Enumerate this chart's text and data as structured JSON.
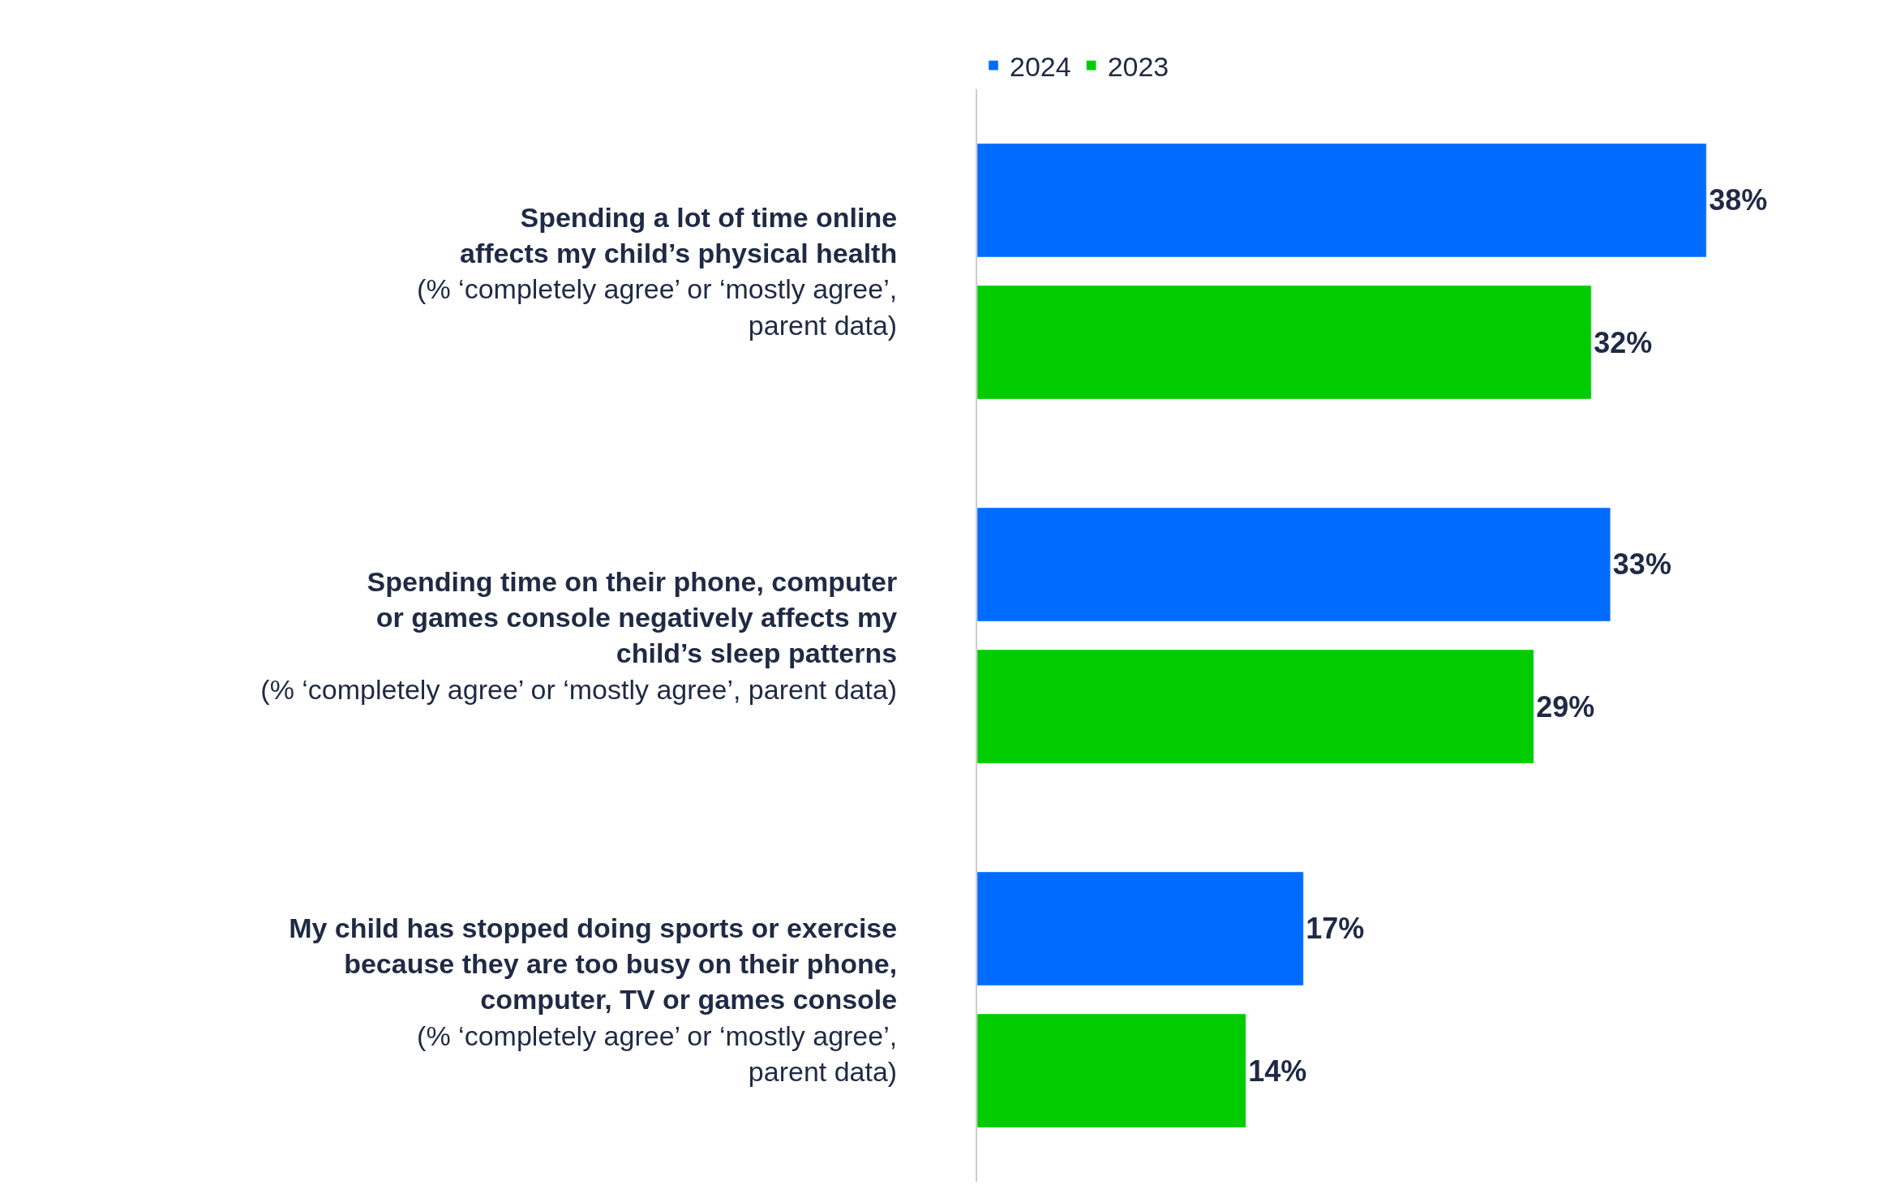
{
  "chart_data": {
    "type": "bar",
    "orientation": "horizontal",
    "categories": [
      "Spending a lot of time online\naffects my child’s physical health\n(% ‘completely agree’ or ‘mostly agree’,\nparent data)",
      "Spending time on their phone, computer\nor games console negatively affects my\nchild’s sleep patterns\n(% ‘completely agree’ or ‘mostly agree’, parent data)",
      "My child has stopped doing sports or exercise\nbecause they are too busy on their phone,\ncomputer, TV or games console\n(% ‘completely agree’ or ‘mostly agree’,\nparent data)"
    ],
    "series": [
      {
        "name": "2024",
        "color": "#006cff",
        "values": [
          38,
          33,
          17
        ],
        "value_labels": [
          "38%",
          "33%",
          "17%"
        ]
      },
      {
        "name": "2023",
        "color": "#00cc00",
        "values": [
          32,
          29,
          14
        ],
        "value_labels": [
          "32%",
          "29%",
          "14%"
        ]
      }
    ],
    "legend": "top"
  }
}
